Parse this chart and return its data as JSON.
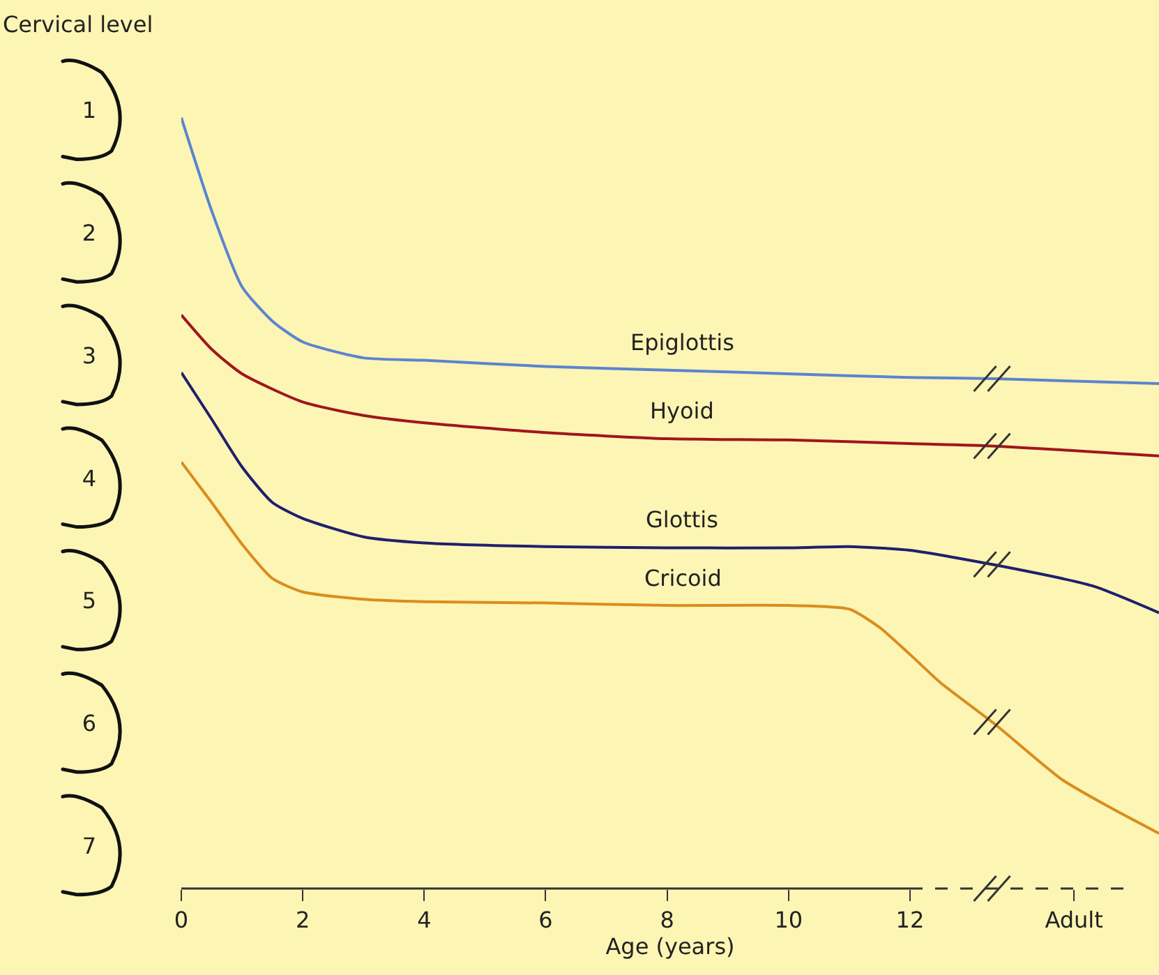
{
  "chart_data": {
    "type": "line",
    "xlabel": "Age (years)",
    "ylabel": "Cervical level",
    "xlim": [
      0,
      16.1
    ],
    "xticks": [
      0,
      2,
      4,
      6,
      8,
      10,
      12,
      {
        "value": 14.7,
        "label": "Adult"
      }
    ],
    "ylim": [
      7.35,
      0.1
    ],
    "yticks": [
      1,
      2,
      3,
      4,
      5,
      6,
      7
    ],
    "grid": false,
    "legend": false,
    "marker": "none",
    "line_style": "solid",
    "series": [
      {
        "name": "Epiglottis",
        "color": "#5b84d0",
        "x": [
          0,
          0.5,
          1,
          1.5,
          2,
          3,
          4,
          6,
          8,
          10,
          12,
          13.4,
          16.1
        ],
        "values": [
          1.06,
          1.82,
          2.44,
          2.72,
          2.89,
          3.02,
          3.04,
          3.09,
          3.12,
          3.15,
          3.18,
          3.19,
          3.23
        ]
      },
      {
        "name": "Hyoid",
        "color": "#a0161c",
        "x": [
          0,
          0.5,
          1,
          2,
          3,
          4,
          6,
          8,
          10,
          12,
          13.4,
          16.1
        ],
        "values": [
          2.67,
          2.95,
          3.15,
          3.38,
          3.49,
          3.55,
          3.63,
          3.68,
          3.69,
          3.72,
          3.74,
          3.82
        ]
      },
      {
        "name": "Glottis",
        "color": "#1f1f6e",
        "x": [
          0,
          0.5,
          1,
          1.5,
          2,
          3,
          4,
          6,
          8,
          10,
          11,
          12,
          13.4,
          15,
          16.1
        ],
        "values": [
          3.14,
          3.52,
          3.91,
          4.2,
          4.33,
          4.48,
          4.53,
          4.56,
          4.57,
          4.57,
          4.56,
          4.59,
          4.71,
          4.88,
          5.1
        ]
      },
      {
        "name": "Cricoid",
        "color": "#d98d1e",
        "x": [
          0,
          0.5,
          1,
          1.5,
          2,
          3,
          4,
          6,
          8,
          10,
          11,
          11.5,
          12,
          12.5,
          13.4,
          14.5,
          15.3,
          16.1
        ],
        "values": [
          3.87,
          4.2,
          4.54,
          4.82,
          4.93,
          4.99,
          5.01,
          5.02,
          5.04,
          5.04,
          5.07,
          5.22,
          5.44,
          5.67,
          6.01,
          6.46,
          6.69,
          6.9
        ]
      }
    ]
  }
}
